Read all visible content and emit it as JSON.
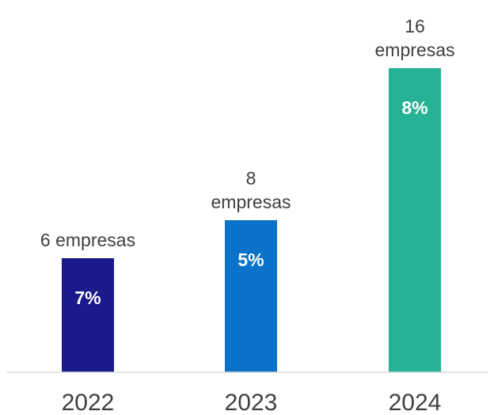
{
  "chart_data": {
    "type": "bar",
    "title": "",
    "xlabel": "",
    "ylabel": "",
    "categories": [
      "2022",
      "2023",
      "2024"
    ],
    "values": [
      6,
      8,
      16
    ],
    "ylim": [
      0,
      16
    ],
    "grid": false,
    "legend": "none",
    "bar_labels": [
      [
        "6 empresas"
      ],
      [
        "8",
        "empresas"
      ],
      [
        "16",
        "empresas"
      ]
    ],
    "inner_labels": [
      "7%",
      "5%",
      "8%"
    ],
    "colors": [
      "#1a1a8c",
      "#0a72c9",
      "#26b294"
    ],
    "baseline_color": "#d9d9d9"
  }
}
